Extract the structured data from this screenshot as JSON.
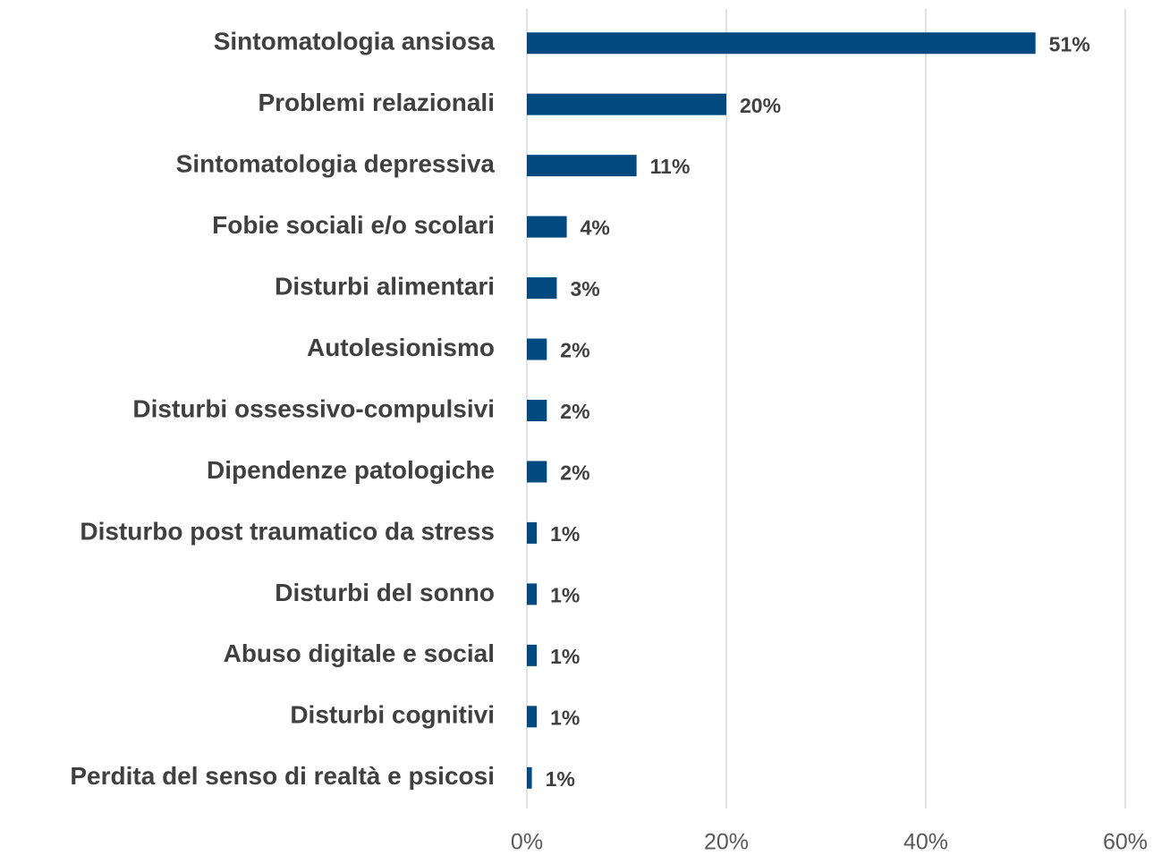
{
  "chart_data": {
    "type": "bar",
    "orientation": "horizontal",
    "categories": [
      "Sintomatologia ansiosa",
      "Problemi relazionali",
      "Sintomatologia depressiva",
      "Fobie sociali e/o scolari",
      "Disturbi alimentari",
      "Autolesionismo",
      "Disturbi ossessivo-compulsivi",
      "Dipendenze patologiche",
      "Disturbo post traumatico da stress",
      "Disturbi del sonno",
      "Abuso digitale e social",
      "Disturbi cognitivi",
      "Perdita del senso di realtà e psicosi"
    ],
    "values": [
      51,
      20,
      11,
      4,
      3,
      2,
      2,
      2,
      1,
      1,
      1,
      1,
      0.5
    ],
    "value_labels": [
      "51%",
      "20%",
      "11%",
      "4%",
      "3%",
      "2%",
      "2%",
      "2%",
      "1%",
      "1%",
      "1%",
      "1%",
      "1%"
    ],
    "color": "#004a7f",
    "xlim": [
      0,
      60
    ],
    "xticks": [
      {
        "value": 0,
        "label": "0%"
      },
      {
        "value": 20,
        "label": "20%"
      },
      {
        "value": 40,
        "label": "40%"
      },
      {
        "value": 60,
        "label": "60%"
      }
    ],
    "grid": true
  }
}
